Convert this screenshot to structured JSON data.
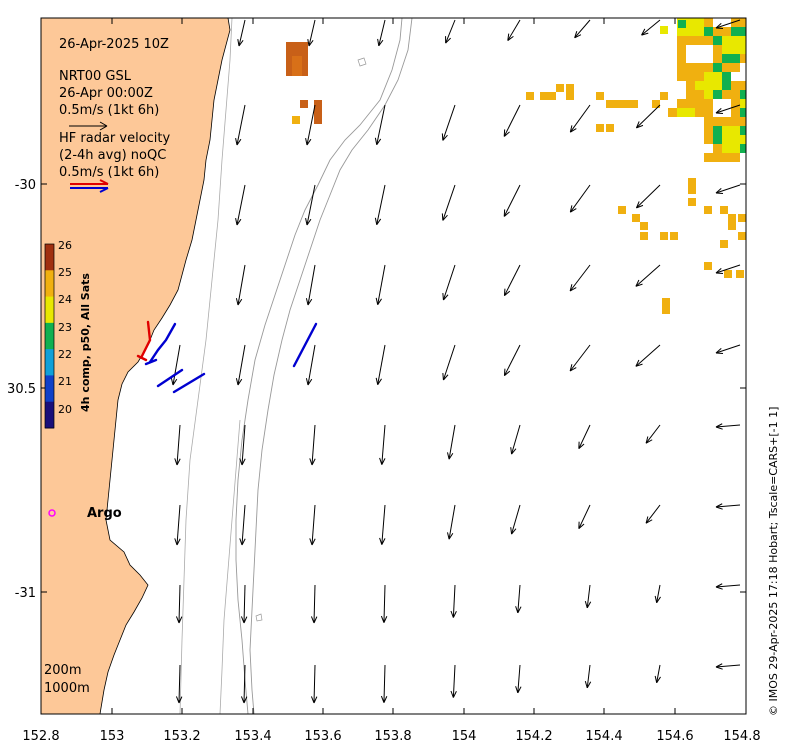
{
  "header": {
    "date_time": "26-Apr-2025 10Z",
    "model_line1": "NRT00 GSL",
    "model_line2": "26-Apr 00:00Z",
    "model_scale": "0.5m/s (1kt 6h)",
    "hf_line1": "HF radar velocity",
    "hf_line2": "(2-4h avg) noQC",
    "hf_scale": "0.5m/s (1kt 6h)"
  },
  "colorbar": {
    "title": "4h comp, p50, All Sats",
    "ticks": [
      "20",
      "21",
      "22",
      "23",
      "24",
      "25",
      "26"
    ],
    "colors": [
      "#1a0f7a",
      "#1040c8",
      "#10a0d8",
      "#10b050",
      "#e8e800",
      "#f0b010",
      "#a03010"
    ]
  },
  "axes": {
    "x_ticks": [
      "152.8",
      "153",
      "153.2",
      "153.4",
      "153.6",
      "153.8",
      "154",
      "154.2",
      "154.4",
      "154.6",
      "154.8"
    ],
    "y_ticks": [
      "-30",
      "30.5",
      "-31"
    ],
    "xlim": [
      152.8,
      154.8
    ],
    "ylim": [
      -31.3,
      -29.6
    ]
  },
  "labels": {
    "argo": "Argo",
    "contour_200": "200m",
    "contour_1000": "1000m"
  },
  "credit": "© IMOS 29-Apr-2025 17:18 Hobart; Tscale=CARS+[-1 1]",
  "colors": {
    "land": "#fdc898",
    "model_arrow": "#000000",
    "hf_arrow_red": "#e00000",
    "hf_arrow_blue": "#0000d0",
    "argo": "#ff00ff"
  }
}
